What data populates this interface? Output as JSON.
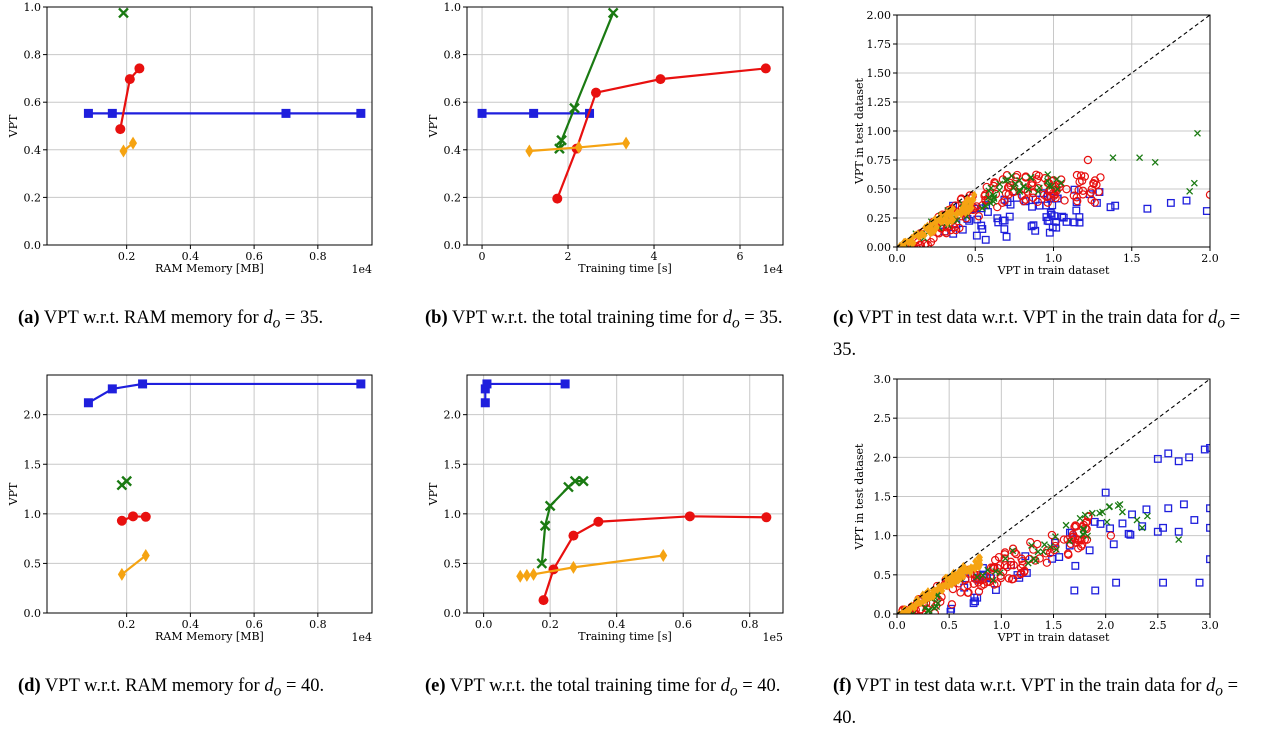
{
  "captions": [
    {
      "tag": "(a)",
      "text": "VPT w.r.t. RAM memory for",
      "sym": "d",
      "sub": "o",
      "eq": "= 35."
    },
    {
      "tag": "(b)",
      "text": "VPT w.r.t. the total training time for",
      "sym": "d",
      "sub": "o",
      "eq": "= 35."
    },
    {
      "tag": "(c)",
      "text": "VPT in test data w.r.t. VPT in the train data for",
      "sym": "d",
      "sub": "o",
      "eq": "= 35."
    },
    {
      "tag": "(d)",
      "text": "VPT w.r.t. RAM memory for",
      "sym": "d",
      "sub": "o",
      "eq": "= 40."
    },
    {
      "tag": "(e)",
      "text": "VPT w.r.t. the total training time for",
      "sym": "d",
      "sub": "o",
      "eq": "= 40."
    },
    {
      "tag": "(f)",
      "text": "VPT in test data w.r.t. VPT in the train data for",
      "sym": "d",
      "sub": "o",
      "eq": "= 40."
    }
  ],
  "colors": {
    "blue": "#1f1fdd",
    "red": "#e8100f",
    "green": "#1a7a12",
    "orange": "#f5a312",
    "grid": "#c8c8c8"
  },
  "chart_data": [
    {
      "id": "a",
      "type": "line",
      "xlabel": "RAM Memory [MB]",
      "ylabel": "VPT",
      "x_multiplier": "1e4",
      "xlim": [
        -0.05,
        0.97
      ],
      "ylim": [
        0,
        1.0
      ],
      "xticks": [
        "0.2",
        "0.4",
        "0.6",
        "0.8"
      ],
      "xtick_values": [
        0.2,
        0.4,
        0.6,
        0.8
      ],
      "yticks": [
        "0.0",
        "0.2",
        "0.4",
        "0.6",
        "0.8",
        "1.0"
      ],
      "ytick_values": [
        0,
        0.2,
        0.4,
        0.6,
        0.8,
        1.0
      ],
      "series": [
        {
          "color": "blue",
          "marker": "square",
          "points": [
            [
              0.08,
              0.553
            ],
            [
              0.155,
              0.553
            ],
            [
              0.7,
              0.553
            ],
            [
              0.935,
              0.553
            ]
          ]
        },
        {
          "color": "red",
          "marker": "circle",
          "points": [
            [
              0.18,
              0.487
            ],
            [
              0.21,
              0.697
            ],
            [
              0.24,
              0.742
            ]
          ]
        },
        {
          "color": "green",
          "marker": "x",
          "points": [
            [
              0.19,
              0.975
            ]
          ]
        },
        {
          "color": "orange",
          "marker": "diamond",
          "points": [
            [
              0.19,
              0.395
            ],
            [
              0.22,
              0.428
            ]
          ]
        }
      ]
    },
    {
      "id": "b",
      "type": "line",
      "xlabel": "Training time [s]",
      "ylabel": "VPT",
      "x_multiplier": "1e4",
      "xlim": [
        -0.35,
        7.0
      ],
      "ylim": [
        0,
        1.0
      ],
      "xticks": [
        "0",
        "2",
        "4",
        "6"
      ],
      "xtick_values": [
        0,
        2,
        4,
        6
      ],
      "yticks": [
        "0.0",
        "0.2",
        "0.4",
        "0.6",
        "0.8",
        "1.0"
      ],
      "ytick_values": [
        0,
        0.2,
        0.4,
        0.6,
        0.8,
        1.0
      ],
      "series": [
        {
          "color": "blue",
          "marker": "square",
          "points": [
            [
              0.0,
              0.553
            ],
            [
              1.2,
              0.553
            ],
            [
              2.5,
              0.553
            ]
          ]
        },
        {
          "color": "red",
          "marker": "circle",
          "points": [
            [
              1.75,
              0.195
            ],
            [
              2.2,
              0.405
            ],
            [
              2.65,
              0.64
            ],
            [
              4.15,
              0.697
            ],
            [
              6.6,
              0.742
            ]
          ]
        },
        {
          "color": "green",
          "marker": "x",
          "points": [
            [
              1.8,
              0.405
            ],
            [
              1.85,
              0.44
            ],
            [
              2.15,
              0.575
            ],
            [
              3.05,
              0.975
            ]
          ]
        },
        {
          "color": "orange",
          "marker": "diamond",
          "points": [
            [
              1.1,
              0.395
            ],
            [
              2.25,
              0.41
            ],
            [
              3.35,
              0.428
            ]
          ]
        }
      ]
    },
    {
      "id": "c",
      "type": "scatter",
      "xlabel": "VPT in train dataset",
      "ylabel": "VPT in test dataset",
      "xlim": [
        0,
        2.0
      ],
      "ylim": [
        0,
        2.0
      ],
      "xticks": [
        "0.0",
        "0.5",
        "1.0",
        "1.5",
        "2.0"
      ],
      "xtick_values": [
        0,
        0.5,
        1.0,
        1.5,
        2.0
      ],
      "yticks": [
        "0.00",
        "0.25",
        "0.50",
        "0.75",
        "1.00",
        "1.25",
        "1.50",
        "1.75",
        "2.00"
      ],
      "ytick_values": [
        0,
        0.25,
        0.5,
        0.75,
        1.0,
        1.25,
        1.5,
        1.75,
        2.0
      ],
      "diagonal": true,
      "extra_points": {
        "green": [
          [
            1.92,
            0.98
          ],
          [
            1.55,
            0.77
          ],
          [
            1.65,
            0.73
          ],
          [
            1.38,
            0.77
          ],
          [
            1.9,
            0.55
          ],
          [
            1.87,
            0.48
          ]
        ],
        "blue": [
          [
            1.98,
            0.31
          ],
          [
            1.85,
            0.4
          ],
          [
            1.75,
            0.38
          ],
          [
            1.6,
            0.33
          ]
        ],
        "red": [
          [
            1.22,
            0.75
          ],
          [
            1.15,
            0.62
          ],
          [
            1.3,
            0.6
          ],
          [
            2.0,
            0.45
          ]
        ]
      }
    },
    {
      "id": "d",
      "type": "line",
      "xlabel": "RAM Memory [MB]",
      "ylabel": "VPT",
      "x_multiplier": "1e4",
      "xlim": [
        -0.05,
        0.97
      ],
      "ylim": [
        0,
        2.4
      ],
      "xticks": [
        "0.2",
        "0.4",
        "0.6",
        "0.8"
      ],
      "xtick_values": [
        0.2,
        0.4,
        0.6,
        0.8
      ],
      "yticks": [
        "0.0",
        "0.5",
        "1.0",
        "1.5",
        "2.0"
      ],
      "ytick_values": [
        0,
        0.5,
        1.0,
        1.5,
        2.0
      ],
      "series": [
        {
          "color": "blue",
          "marker": "square",
          "points": [
            [
              0.08,
              2.12
            ],
            [
              0.155,
              2.26
            ],
            [
              0.25,
              2.31
            ],
            [
              0.935,
              2.31
            ]
          ]
        },
        {
          "color": "red",
          "marker": "circle",
          "points": [
            [
              0.185,
              0.93
            ],
            [
              0.22,
              0.975
            ],
            [
              0.26,
              0.97
            ]
          ]
        },
        {
          "color": "green",
          "marker": "x",
          "points": [
            [
              0.185,
              1.29
            ],
            [
              0.2,
              1.33
            ]
          ]
        },
        {
          "color": "orange",
          "marker": "diamond",
          "points": [
            [
              0.185,
              0.39
            ],
            [
              0.26,
              0.58
            ]
          ]
        }
      ]
    },
    {
      "id": "e",
      "type": "line",
      "xlabel": "Training time [s]",
      "ylabel": "VPT",
      "x_multiplier": "1e5",
      "xlim": [
        -0.05,
        0.9
      ],
      "ylim": [
        0,
        2.4
      ],
      "xticks": [
        "0.0",
        "0.2",
        "0.4",
        "0.6",
        "0.8"
      ],
      "xtick_values": [
        0,
        0.2,
        0.4,
        0.6,
        0.8
      ],
      "yticks": [
        "0.0",
        "0.5",
        "1.0",
        "1.5",
        "2.0"
      ],
      "ytick_values": [
        0,
        0.5,
        1.0,
        1.5,
        2.0
      ],
      "series": [
        {
          "color": "blue",
          "marker": "square",
          "points": [
            [
              0.005,
              2.12
            ],
            [
              0.005,
              2.26
            ],
            [
              0.01,
              2.31
            ],
            [
              0.245,
              2.31
            ]
          ]
        },
        {
          "color": "red",
          "marker": "circle",
          "points": [
            [
              0.18,
              0.13
            ],
            [
              0.21,
              0.44
            ],
            [
              0.27,
              0.78
            ],
            [
              0.345,
              0.92
            ],
            [
              0.62,
              0.975
            ],
            [
              0.85,
              0.965
            ]
          ]
        },
        {
          "color": "green",
          "marker": "x",
          "points": [
            [
              0.175,
              0.5
            ],
            [
              0.185,
              0.88
            ],
            [
              0.2,
              1.08
            ],
            [
              0.255,
              1.27
            ],
            [
              0.275,
              1.33
            ],
            [
              0.3,
              1.33
            ]
          ]
        },
        {
          "color": "orange",
          "marker": "diamond",
          "points": [
            [
              0.11,
              0.37
            ],
            [
              0.13,
              0.38
            ],
            [
              0.15,
              0.39
            ],
            [
              0.27,
              0.46
            ],
            [
              0.54,
              0.58
            ]
          ]
        }
      ]
    },
    {
      "id": "f",
      "type": "scatter",
      "xlabel": "VPT in train dataset",
      "ylabel": "VPT in test dataset",
      "xlim": [
        0,
        3.0
      ],
      "ylim": [
        0,
        3.0
      ],
      "xticks": [
        "0.0",
        "0.5",
        "1.0",
        "1.5",
        "2.0",
        "2.5",
        "3.0"
      ],
      "xtick_values": [
        0,
        0.5,
        1.0,
        1.5,
        2.0,
        2.5,
        3.0
      ],
      "yticks": [
        "0.0",
        "0.5",
        "1.0",
        "1.5",
        "2.0",
        "2.5",
        "3.0"
      ],
      "ytick_values": [
        0,
        0.5,
        1.0,
        1.5,
        2.0,
        2.5,
        3.0
      ],
      "diagonal": true,
      "extra_points": {
        "blue": [
          [
            2.95,
            2.1
          ],
          [
            3.0,
            2.12
          ],
          [
            2.8,
            2.0
          ],
          [
            2.6,
            2.05
          ],
          [
            2.5,
            1.98
          ],
          [
            2.7,
            1.95
          ],
          [
            2.75,
            1.4
          ],
          [
            3.0,
            1.35
          ],
          [
            2.6,
            1.35
          ],
          [
            2.85,
            1.2
          ],
          [
            3.0,
            1.1
          ],
          [
            2.55,
            1.1
          ],
          [
            2.5,
            1.05
          ],
          [
            2.7,
            1.05
          ],
          [
            2.0,
            1.55
          ],
          [
            1.95,
            1.15
          ],
          [
            2.9,
            0.4
          ],
          [
            2.55,
            0.4
          ],
          [
            3.0,
            0.7
          ],
          [
            1.9,
            0.3
          ],
          [
            2.1,
            0.4
          ],
          [
            1.7,
            0.3
          ]
        ],
        "green": [
          [
            2.4,
            1.25
          ],
          [
            2.7,
            0.95
          ],
          [
            2.3,
            1.2
          ],
          [
            2.35,
            1.1
          ]
        ],
        "red": [
          [
            2.05,
            1.0
          ],
          [
            1.8,
            0.95
          ],
          [
            1.6,
            0.95
          ]
        ]
      }
    }
  ]
}
